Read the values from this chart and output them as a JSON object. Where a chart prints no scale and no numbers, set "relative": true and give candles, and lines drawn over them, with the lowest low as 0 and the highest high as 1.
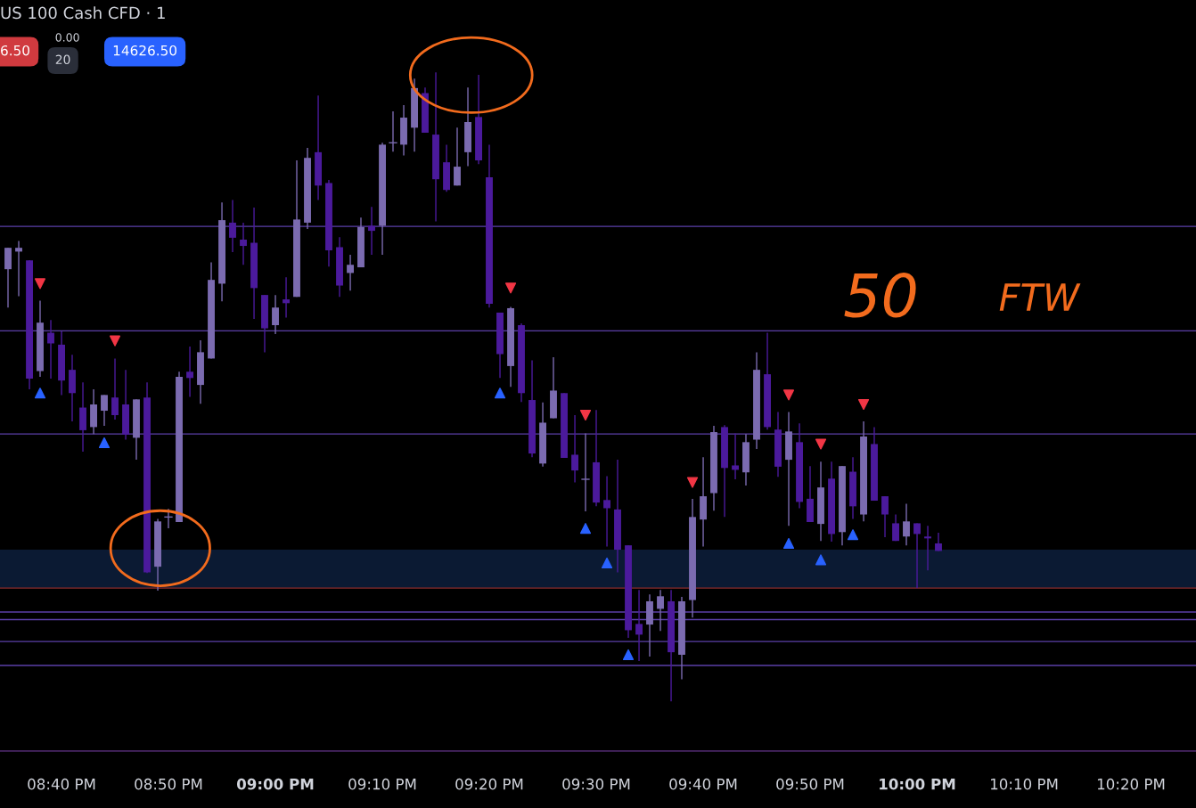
{
  "chart_data": {
    "type": "candlestick",
    "title": "US 100 Cash CFD · 1",
    "relative": true,
    "grid": false,
    "annotations": [
      "6.50",
      "0.00",
      "20",
      "14626.50",
      "50",
      "FTW"
    ],
    "xlim": [
      20.5708,
      22.4347
    ],
    "xticks": [
      {
        "value": 20.6667,
        "label": "08:40 PM"
      },
      {
        "value": 20.8333,
        "label": "08:50 PM"
      },
      {
        "value": 21.0,
        "label": "09:00 PM"
      },
      {
        "value": 21.1667,
        "label": "09:10 PM"
      },
      {
        "value": 21.3333,
        "label": "09:20 PM"
      },
      {
        "value": 21.5,
        "label": "09:30 PM"
      },
      {
        "value": 21.6667,
        "label": "09:40 PM"
      },
      {
        "value": 21.8333,
        "label": "09:50 PM"
      },
      {
        "value": 22.0,
        "label": "10:00 PM"
      },
      {
        "value": 22.1667,
        "label": "10:10 PM"
      },
      {
        "value": 22.3333,
        "label": "10:20 PM"
      }
    ],
    "x": [
      20.5833,
      20.6,
      20.6167,
      20.6333,
      20.65,
      20.6667,
      20.6833,
      20.7,
      20.7167,
      20.7333,
      20.75,
      20.7667,
      20.7833,
      20.8,
      20.8167,
      20.8333,
      20.85,
      20.8667,
      20.8833,
      20.9,
      20.9167,
      20.9333,
      20.95,
      20.9667,
      20.9833,
      21.0,
      21.0167,
      21.0333,
      21.05,
      21.0667,
      21.0833,
      21.1,
      21.1167,
      21.1333,
      21.15,
      21.1667,
      21.1833,
      21.2,
      21.2167,
      21.2333,
      21.25,
      21.2667,
      21.2833,
      21.3,
      21.3167,
      21.3333,
      21.35,
      21.3667,
      21.3833,
      21.4,
      21.4167,
      21.4333,
      21.45,
      21.4667,
      21.4833,
      21.5,
      21.5167,
      21.5333,
      21.55,
      21.5667,
      21.5833,
      21.6,
      21.6167,
      21.6333,
      21.65,
      21.6667,
      21.6833,
      21.7,
      21.7167,
      21.7333,
      21.75,
      21.7667,
      21.7833,
      21.8,
      21.8167,
      21.8333,
      21.85,
      21.8667,
      21.8833,
      21.9,
      21.9167,
      21.9333,
      21.95,
      21.9667,
      21.9833,
      22.0,
      22.0167,
      22.0333
    ],
    "ohlc": [
      [
        0.687,
        0.721,
        0.626,
        0.721
      ],
      [
        0.715,
        0.732,
        0.644,
        0.721
      ],
      [
        0.701,
        0.701,
        0.496,
        0.513
      ],
      [
        0.525,
        0.637,
        0.516,
        0.602
      ],
      [
        0.586,
        0.606,
        0.513,
        0.569
      ],
      [
        0.567,
        0.588,
        0.487,
        0.51
      ],
      [
        0.527,
        0.551,
        0.445,
        0.49
      ],
      [
        0.467,
        0.507,
        0.397,
        0.431
      ],
      [
        0.436,
        0.496,
        0.425,
        0.472
      ],
      [
        0.462,
        0.487,
        0.438,
        0.487
      ],
      [
        0.483,
        0.545,
        0.448,
        0.455
      ],
      [
        0.472,
        0.527,
        0.416,
        0.424
      ],
      [
        0.419,
        0.48,
        0.384,
        0.48
      ],
      [
        0.483,
        0.507,
        0.204,
        0.205
      ],
      [
        0.214,
        0.29,
        0.176,
        0.286
      ],
      [
        0.293,
        0.306,
        0.275,
        0.293
      ],
      [
        0.285,
        0.524,
        0.285,
        0.516
      ],
      [
        0.524,
        0.564,
        0.484,
        0.514
      ],
      [
        0.503,
        0.574,
        0.473,
        0.555
      ],
      [
        0.545,
        0.698,
        0.545,
        0.67
      ],
      [
        0.664,
        0.793,
        0.636,
        0.765
      ],
      [
        0.761,
        0.797,
        0.714,
        0.737
      ],
      [
        0.734,
        0.761,
        0.694,
        0.724
      ],
      [
        0.729,
        0.785,
        0.608,
        0.657
      ],
      [
        0.646,
        0.646,
        0.555,
        0.593
      ],
      [
        0.598,
        0.646,
        0.584,
        0.626
      ],
      [
        0.639,
        0.674,
        0.61,
        0.633
      ],
      [
        0.643,
        0.86,
        0.643,
        0.766
      ],
      [
        0.761,
        0.88,
        0.751,
        0.864
      ],
      [
        0.873,
        0.963,
        0.797,
        0.82
      ],
      [
        0.824,
        0.829,
        0.691,
        0.717
      ],
      [
        0.722,
        0.738,
        0.643,
        0.661
      ],
      [
        0.681,
        0.71,
        0.653,
        0.694
      ],
      [
        0.69,
        0.769,
        0.69,
        0.754
      ],
      [
        0.756,
        0.786,
        0.71,
        0.748
      ],
      [
        0.756,
        0.888,
        0.71,
        0.885
      ],
      [
        0.888,
        0.938,
        0.874,
        0.888
      ],
      [
        0.885,
        0.948,
        0.868,
        0.928
      ],
      [
        0.912,
        0.99,
        0.874,
        0.975
      ],
      [
        0.967,
        0.976,
        0.904,
        0.904
      ],
      [
        0.901,
        1.0,
        0.763,
        0.83
      ],
      [
        0.857,
        0.885,
        0.81,
        0.813
      ],
      [
        0.82,
        0.912,
        0.82,
        0.85
      ],
      [
        0.873,
        0.976,
        0.851,
        0.921
      ],
      [
        0.929,
        0.996,
        0.854,
        0.86
      ],
      [
        0.833,
        0.885,
        0.626,
        0.632
      ],
      [
        0.618,
        0.618,
        0.514,
        0.552
      ],
      [
        0.533,
        0.627,
        0.5,
        0.625
      ],
      [
        0.598,
        0.601,
        0.476,
        0.49
      ],
      [
        0.479,
        0.542,
        0.388,
        0.394
      ],
      [
        0.378,
        0.475,
        0.373,
        0.443
      ],
      [
        0.45,
        0.547,
        0.45,
        0.494
      ],
      [
        0.49,
        0.49,
        0.387,
        0.387
      ],
      [
        0.392,
        0.455,
        0.348,
        0.367
      ],
      [
        0.353,
        0.426,
        0.302,
        0.353
      ],
      [
        0.38,
        0.463,
        0.31,
        0.316
      ],
      [
        0.32,
        0.358,
        0.246,
        0.307
      ],
      [
        0.305,
        0.384,
        0.205,
        0.241
      ],
      [
        0.248,
        0.248,
        0.101,
        0.113
      ],
      [
        0.123,
        0.177,
        0.064,
        0.106
      ],
      [
        0.122,
        0.17,
        0.071,
        0.159
      ],
      [
        0.147,
        0.177,
        0.112,
        0.167
      ],
      [
        0.159,
        0.177,
        0.0,
        0.078
      ],
      [
        0.074,
        0.166,
        0.035,
        0.159
      ],
      [
        0.161,
        0.322,
        0.133,
        0.293
      ],
      [
        0.289,
        0.388,
        0.246,
        0.326
      ],
      [
        0.331,
        0.438,
        0.303,
        0.428
      ],
      [
        0.436,
        0.439,
        0.293,
        0.371
      ],
      [
        0.375,
        0.426,
        0.353,
        0.368
      ],
      [
        0.364,
        0.425,
        0.343,
        0.412
      ],
      [
        0.416,
        0.555,
        0.401,
        0.527
      ],
      [
        0.52,
        0.586,
        0.432,
        0.436
      ],
      [
        0.432,
        0.46,
        0.357,
        0.373
      ],
      [
        0.384,
        0.46,
        0.279,
        0.429
      ],
      [
        0.412,
        0.442,
        0.307,
        0.317
      ],
      [
        0.322,
        0.374,
        0.285,
        0.285
      ],
      [
        0.282,
        0.381,
        0.255,
        0.34
      ],
      [
        0.354,
        0.381,
        0.254,
        0.266
      ],
      [
        0.269,
        0.374,
        0.248,
        0.374
      ],
      [
        0.365,
        0.388,
        0.29,
        0.31
      ],
      [
        0.297,
        0.445,
        0.286,
        0.421
      ],
      [
        0.409,
        0.436,
        0.319,
        0.319
      ],
      [
        0.326,
        0.326,
        0.261,
        0.297
      ],
      [
        0.283,
        0.297,
        0.255,
        0.255
      ],
      [
        0.262,
        0.314,
        0.248,
        0.286
      ],
      [
        0.283,
        0.283,
        0.18,
        0.266
      ],
      [
        0.262,
        0.279,
        0.208,
        0.259
      ],
      [
        0.251,
        0.268,
        0.239,
        0.239
      ]
    ],
    "colors": [
      "#7b6bb0",
      "#7b6bb0",
      "#4b1a9c",
      "#7b6bb0",
      "#4b1a9c",
      "#4b1a9c",
      "#4b1a9c",
      "#4b1a9c",
      "#7b6bb0",
      "#7b6bb0",
      "#4b1a9c",
      "#4b1a9c",
      "#7b6bb0",
      "#4b1a9c",
      "#7b6bb0",
      "#7b6bb0",
      "#7b6bb0",
      "#4b1a9c",
      "#7b6bb0",
      "#7b6bb0",
      "#7b6bb0",
      "#4b1a9c",
      "#4b1a9c",
      "#4b1a9c",
      "#4b1a9c",
      "#7b6bb0",
      "#4b1a9c",
      "#7b6bb0",
      "#7b6bb0",
      "#4b1a9c",
      "#4b1a9c",
      "#4b1a9c",
      "#7b6bb0",
      "#7b6bb0",
      "#4b1a9c",
      "#7b6bb0",
      "#7b6bb0",
      "#7b6bb0",
      "#7b6bb0",
      "#4b1a9c",
      "#4b1a9c",
      "#4b1a9c",
      "#7b6bb0",
      "#7b6bb0",
      "#4b1a9c",
      "#4b1a9c",
      "#4b1a9c",
      "#7b6bb0",
      "#4b1a9c",
      "#4b1a9c",
      "#7b6bb0",
      "#7b6bb0",
      "#4b1a9c",
      "#4b1a9c",
      "#7b6bb0",
      "#4b1a9c",
      "#4b1a9c",
      "#4b1a9c",
      "#4b1a9c",
      "#4b1a9c",
      "#7b6bb0",
      "#7b6bb0",
      "#4b1a9c",
      "#7b6bb0",
      "#7b6bb0",
      "#7b6bb0",
      "#7b6bb0",
      "#4b1a9c",
      "#4b1a9c",
      "#7b6bb0",
      "#7b6bb0",
      "#4b1a9c",
      "#4b1a9c",
      "#7b6bb0",
      "#4b1a9c",
      "#4b1a9c",
      "#7b6bb0",
      "#4b1a9c",
      "#7b6bb0",
      "#4b1a9c",
      "#7b6bb0",
      "#4b1a9c",
      "#4b1a9c",
      "#4b1a9c",
      "#7b6bb0",
      "#4b1a9c",
      "#4b1a9c",
      "#4b1a9c"
    ],
    "series": [
      {
        "type": "scatter",
        "marker": "triangle",
        "color": "#f23645",
        "x": [
          20.6333,
          20.75,
          21.3667,
          21.4833,
          21.65,
          21.8,
          21.85,
          21.9167
        ],
        "values": [
          0.664,
          0.573,
          0.657,
          0.455,
          0.348,
          0.487,
          0.409,
          0.472
        ]
      },
      {
        "type": "scatter",
        "marker": "triangle",
        "color": "#2962ff",
        "x": [
          20.6333,
          20.7333,
          21.35,
          21.4833,
          21.5167,
          21.55,
          21.8,
          21.85,
          21.9
        ],
        "values": [
          0.49,
          0.411,
          0.49,
          0.275,
          0.22,
          0.074,
          0.251,
          0.225,
          0.265
        ]
      }
    ],
    "ref_lines": [
      {
        "axis": "y",
        "value": 0.755,
        "color": "#5b3fa8"
      },
      {
        "axis": "y",
        "value": 0.589,
        "color": "#5b3fa8"
      },
      {
        "axis": "y",
        "value": 0.425,
        "color": "#5b3fa8"
      },
      {
        "axis": "y",
        "value": 0.18,
        "color": "#8b2a2a"
      },
      {
        "axis": "y",
        "value": 0.142,
        "color": "#5b3fa8"
      },
      {
        "axis": "y",
        "value": 0.13,
        "color": "#5b3fa8"
      },
      {
        "axis": "y",
        "value": 0.095,
        "color": "#5b3fa8"
      },
      {
        "axis": "y",
        "value": 0.057,
        "color": "#5b3fa8"
      }
    ],
    "bands": [
      {
        "axis": "y",
        "from": 0.18,
        "to": 0.241,
        "color": "#0b1a33"
      }
    ]
  }
}
